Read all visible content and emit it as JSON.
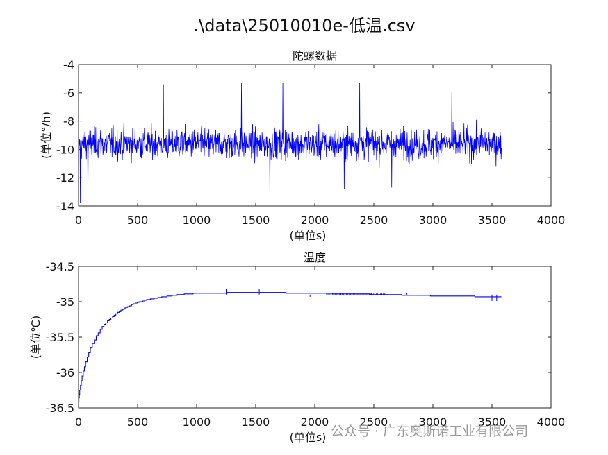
{
  "figure_title": ".\\data\\25010010e-低温.csv",
  "watermark": "公众号 · 广东奥斯诺工业有限公司",
  "chart_data": [
    {
      "type": "line",
      "title": "陀螺数据",
      "xlabel": "(单位s)",
      "ylabel": "(单位°/h)",
      "xlim": [
        0,
        4000
      ],
      "ylim": [
        -14,
        -4
      ],
      "xticks": [
        0,
        500,
        1000,
        1500,
        2000,
        2500,
        3000,
        3500,
        4000
      ],
      "yticks": [
        -4,
        -6,
        -8,
        -10,
        -12,
        -14
      ],
      "grid": false,
      "series": [
        {
          "color": "#0000ff",
          "description": "noise around mean",
          "x_range": [
            0,
            3580
          ],
          "mean": -9.6,
          "band_typical": [
            -12.0,
            -7.2
          ],
          "extremes": [
            -13.8,
            -5.3
          ],
          "spikes": [
            [
              15,
              -13.8
            ],
            [
              720,
              -5.4
            ],
            [
              1380,
              -5.3
            ],
            [
              1730,
              -5.3
            ],
            [
              2380,
              -5.3
            ],
            [
              3160,
              -5.9
            ],
            [
              80,
              -13.0
            ],
            [
              1620,
              -13.0
            ],
            [
              2250,
              -12.8
            ],
            [
              2650,
              -12.7
            ]
          ]
        }
      ]
    },
    {
      "type": "line",
      "title": "温度",
      "xlabel": "(单位s)",
      "ylabel": "(单位℃)",
      "xlim": [
        0,
        4000
      ],
      "ylim": [
        -36.5,
        -34.5
      ],
      "xticks": [
        0,
        500,
        1000,
        1500,
        2000,
        2500,
        3000,
        3500,
        4000
      ],
      "yticks": [
        -34.5,
        -35,
        -35.5,
        -36,
        -36.5
      ],
      "grid": false,
      "series": [
        {
          "color": "#0000ff",
          "points": [
            [
              0,
              -36.42
            ],
            [
              10,
              -36.25
            ],
            [
              30,
              -36.05
            ],
            [
              60,
              -35.85
            ],
            [
              100,
              -35.65
            ],
            [
              150,
              -35.48
            ],
            [
              200,
              -35.35
            ],
            [
              260,
              -35.25
            ],
            [
              330,
              -35.15
            ],
            [
              400,
              -35.08
            ],
            [
              480,
              -35.02
            ],
            [
              560,
              -34.98
            ],
            [
              640,
              -34.95
            ],
            [
              720,
              -34.93
            ],
            [
              850,
              -34.9
            ],
            [
              1000,
              -34.88
            ],
            [
              1500,
              -34.87
            ],
            [
              2000,
              -34.88
            ],
            [
              2600,
              -34.9
            ],
            [
              3100,
              -34.92
            ],
            [
              3580,
              -34.93
            ]
          ],
          "spikes": [
            [
              1250,
              -34.82
            ],
            [
              1530,
              -34.82
            ],
            [
              1960,
              -34.93
            ],
            [
              2220,
              -34.88
            ],
            [
              2330,
              -34.88
            ],
            [
              2480,
              -34.88
            ],
            [
              2780,
              -34.88
            ],
            [
              3450,
              -34.99
            ],
            [
              3500,
              -34.99
            ],
            [
              3540,
              -34.99
            ]
          ]
        }
      ]
    }
  ]
}
